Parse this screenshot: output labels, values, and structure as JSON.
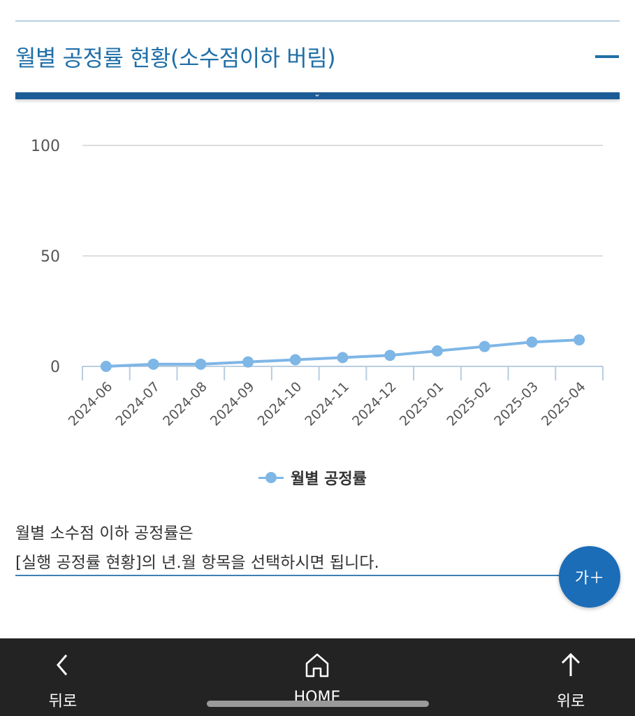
{
  "section": {
    "title": "월별 공정률 현황(소수점이하 버림)"
  },
  "chart_data": {
    "type": "line",
    "categories": [
      "2024-06",
      "2024-07",
      "2024-08",
      "2024-09",
      "2024-10",
      "2024-11",
      "2024-12",
      "2025-01",
      "2025-02",
      "2025-03",
      "2025-04"
    ],
    "series": [
      {
        "name": "월별 공정률",
        "values": [
          0,
          1,
          1,
          2,
          3,
          4,
          5,
          7,
          9,
          11,
          12
        ],
        "color": "#7eb6e6"
      }
    ],
    "ylim": [
      0,
      100
    ],
    "yticks": [
      0,
      50,
      100
    ],
    "grid": true,
    "legend_position": "bottom"
  },
  "note": {
    "line1": "월별 소수점 이하 공정률은",
    "line2": "[실행 공정률 현황]의 년.월 항목을 선택하시면 됩니다."
  },
  "font_button": {
    "label": "가＋"
  },
  "bottom_nav": {
    "back": {
      "label": "뒤로",
      "icon": "chevron-left-icon"
    },
    "home": {
      "label": "HOME",
      "icon": "home-icon"
    },
    "up": {
      "label": "위로",
      "icon": "arrow-up-icon"
    }
  },
  "colors": {
    "accent": "#1f6fa8",
    "bar": "#1b5c96",
    "series": "#7eb6e6",
    "nav_bg": "#232323"
  }
}
